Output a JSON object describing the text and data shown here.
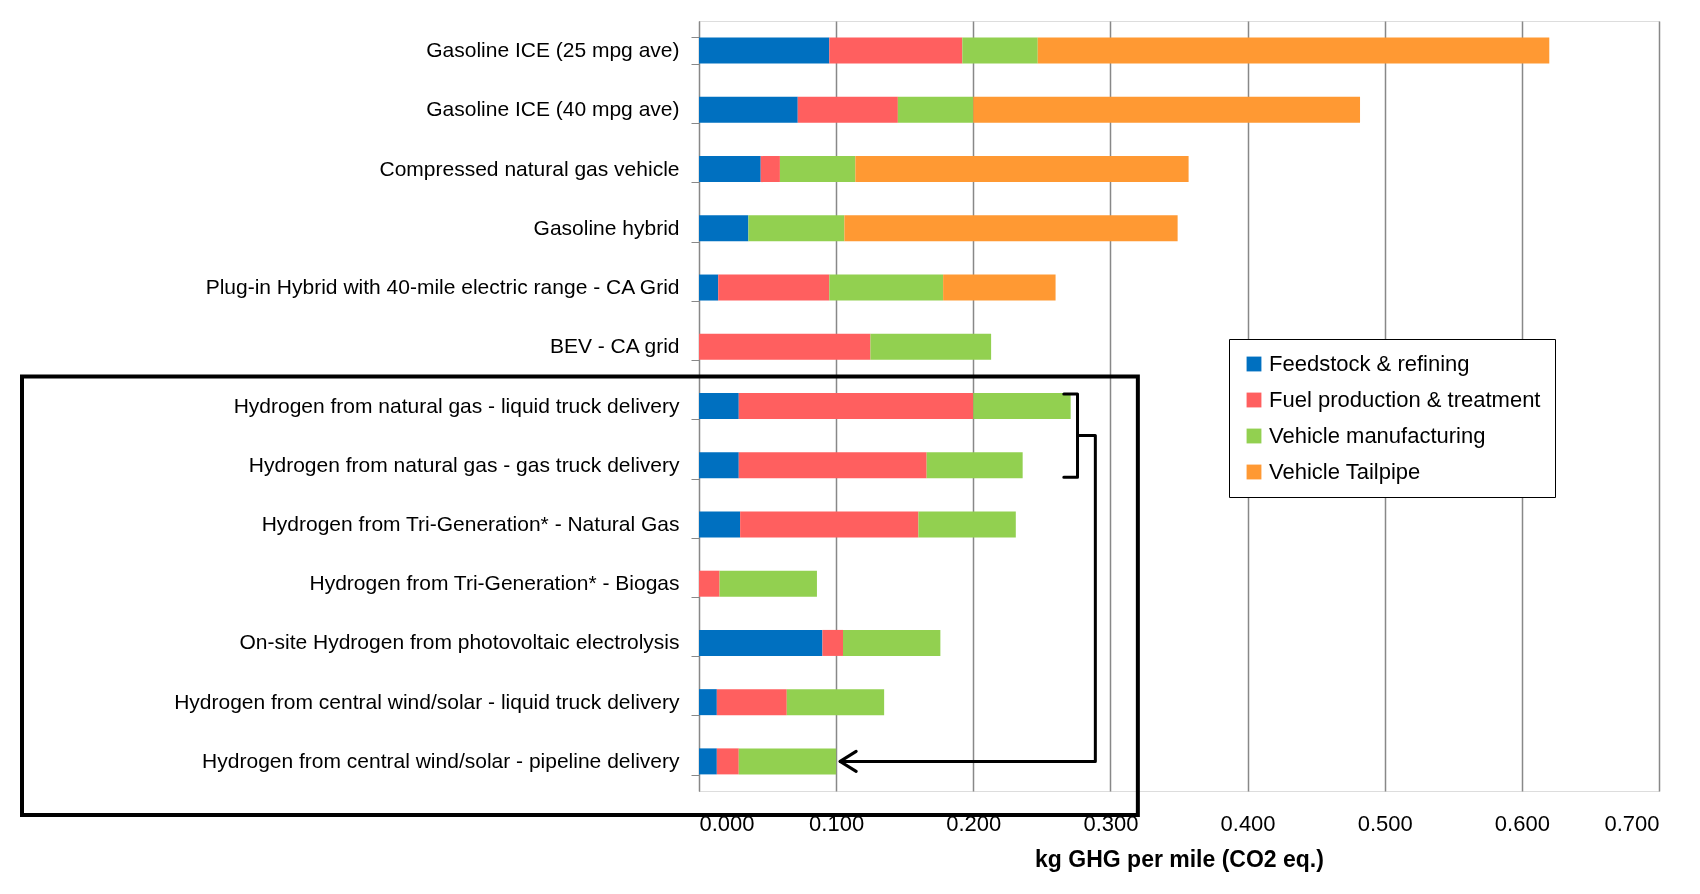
{
  "chart_data": {
    "type": "bar",
    "orientation": "horizontal",
    "stacked": true,
    "xlabel": "kg GHG per mile (CO2 eq.)",
    "categories": [
      "Gasoline ICE (25 mpg ave)",
      "Gasoline ICE (40 mpg ave)",
      "Compressed natural gas vehicle",
      "Gasoline hybrid",
      "Plug-in Hybrid with 40-mile electric range - CA Grid",
      "BEV - CA grid",
      "Hydrogen from natural gas - liquid truck delivery",
      "Hydrogen from natural gas - gas truck delivery",
      "Hydrogen from Tri-Generation* - Natural Gas",
      "Hydrogen from Tri-Generation* - Biogas",
      "On-site Hydrogen from photovoltaic electrolysis",
      "Hydrogen from central wind/solar - liquid truck delivery",
      "Hydrogen from central wind/solar - pipeline delivery"
    ],
    "series": [
      {
        "name": "Feedstock & refining",
        "color": "#0070c0",
        "values": [
          0.095,
          0.072,
          0.045,
          0.036,
          0.014,
          null,
          0.029,
          0.029,
          0.03,
          null,
          0.09,
          0.013,
          0.013
        ]
      },
      {
        "name": "Fuel production & treatment",
        "color": "#ff5f5f",
        "values": [
          0.097,
          0.073,
          0.014,
          null,
          0.081,
          0.125,
          0.171,
          0.137,
          0.13,
          0.015,
          0.015,
          0.051,
          0.016
        ]
      },
      {
        "name": "Vehicle manufacturing",
        "color": "#92d050",
        "values": [
          0.055,
          0.055,
          0.055,
          0.07,
          0.083,
          0.088,
          0.071,
          0.07,
          0.071,
          0.071,
          0.071,
          0.071,
          0.071
        ]
      },
      {
        "name": "Vehicle Tailpipe",
        "color": "#ff9933",
        "values": [
          0.373,
          0.282,
          0.243,
          0.243,
          0.082,
          null,
          null,
          null,
          null,
          null,
          null,
          null,
          null
        ]
      }
    ],
    "xlim": [
      0,
      0.7
    ],
    "xticks": [
      {
        "value": 0,
        "label": "0.000"
      },
      {
        "value": 0.1,
        "label": "0.100"
      },
      {
        "value": 0.2,
        "label": "0.200"
      },
      {
        "value": 0.3,
        "label": "0.300"
      },
      {
        "value": 0.4,
        "label": "0.400"
      },
      {
        "value": 0.5,
        "label": "0.500"
      },
      {
        "value": 0.6,
        "label": "0.600"
      },
      {
        "value": 0.7,
        "label": "0.700"
      }
    ],
    "grid": "x",
    "legend": "right"
  }
}
